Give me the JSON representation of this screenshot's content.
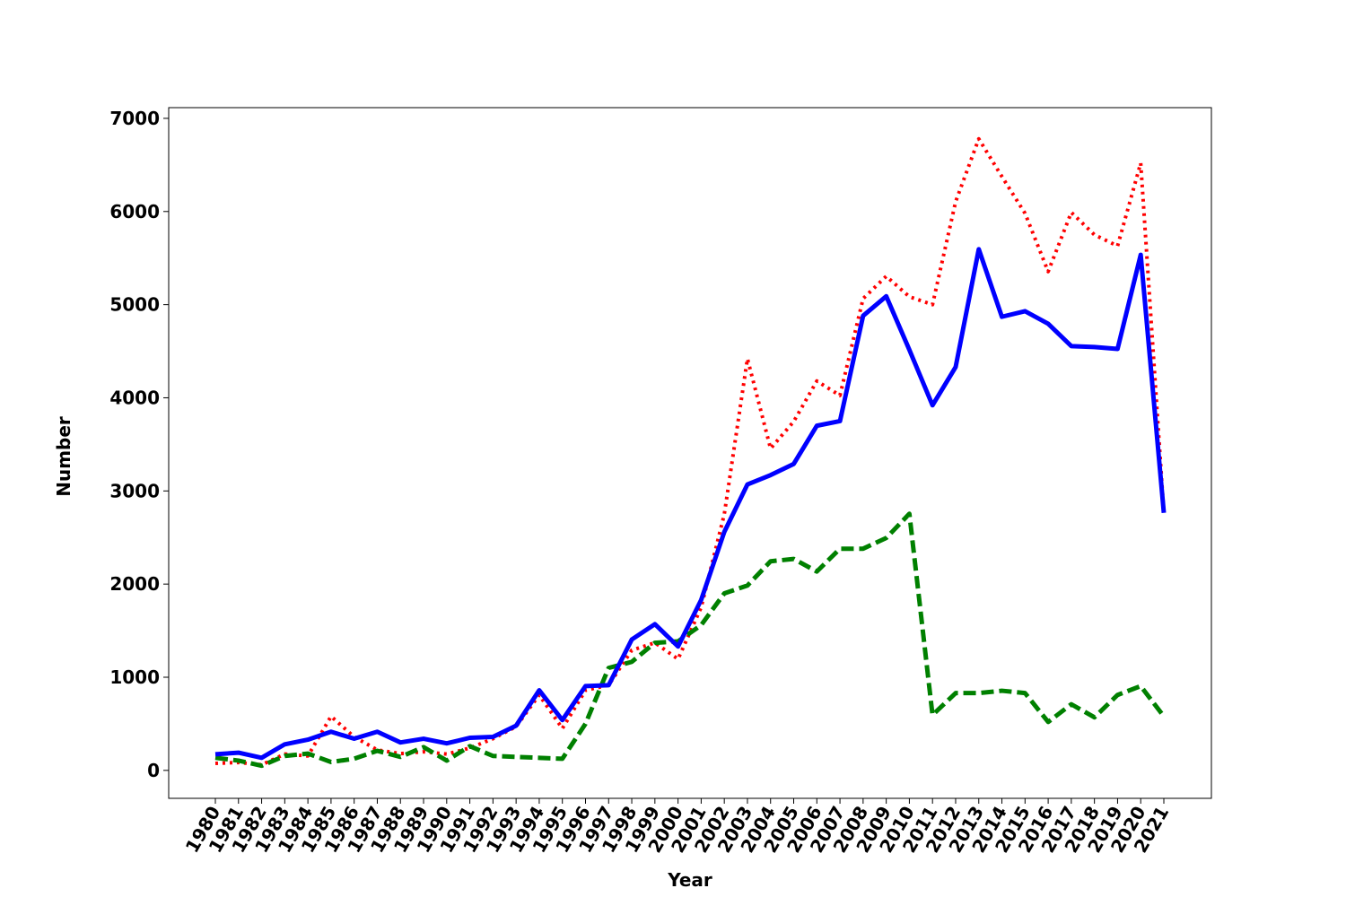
{
  "chart_data": {
    "type": "line",
    "xlabel": "Year",
    "ylabel": "Number",
    "categories": [
      "1980",
      "1981",
      "1982",
      "1983",
      "1984",
      "1985",
      "1986",
      "1987",
      "1988",
      "1989",
      "1990",
      "1991",
      "1992",
      "1993",
      "1994",
      "1995",
      "1996",
      "1997",
      "1998",
      "1999",
      "2000",
      "2001",
      "2002",
      "2003",
      "2004",
      "2005",
      "2006",
      "2007",
      "2008",
      "2009",
      "2010",
      "2011",
      "2012",
      "2013",
      "2014",
      "2015",
      "2016",
      "2017",
      "2018",
      "2019",
      "2020",
      "2021"
    ],
    "series": [
      {
        "color": "#ff0000",
        "linestyle": "dotted",
        "values": [
          75,
          85,
          60,
          175,
          155,
          580,
          360,
          220,
          180,
          200,
          175,
          240,
          340,
          470,
          810,
          450,
          860,
          915,
          1290,
          1370,
          1195,
          1750,
          2750,
          4420,
          3455,
          3745,
          4180,
          4025,
          5065,
          5305,
          5085,
          5000,
          6105,
          6780,
          6375,
          5980,
          5355,
          5990,
          5750,
          5630,
          6520,
          2765
        ]
      },
      {
        "color": "#008000",
        "linestyle": "dashed",
        "values": [
          135,
          105,
          50,
          155,
          180,
          90,
          125,
          210,
          145,
          250,
          105,
          260,
          155,
          145,
          135,
          125,
          500,
          1100,
          1165,
          1370,
          1385,
          1560,
          1900,
          1985,
          2245,
          2270,
          2135,
          2380,
          2380,
          2495,
          2755,
          595,
          830,
          830,
          855,
          830,
          520,
          710,
          570,
          810,
          905,
          580
        ]
      },
      {
        "color": "#0000ff",
        "linestyle": "solid",
        "values": [
          173,
          190,
          135,
          280,
          330,
          415,
          340,
          415,
          300,
          340,
          290,
          350,
          360,
          480,
          860,
          540,
          905,
          915,
          1405,
          1570,
          1330,
          1830,
          2560,
          3070,
          3170,
          3290,
          3700,
          3750,
          4880,
          5090,
          4515,
          3920,
          4330,
          5595,
          4870,
          4930,
          4795,
          4555,
          4545,
          4525,
          5535,
          2765
        ]
      }
    ],
    "ylim": [
      -300,
      7115
    ],
    "yticks": [
      0,
      1000,
      2000,
      3000,
      4000,
      5000,
      6000,
      7000
    ]
  }
}
